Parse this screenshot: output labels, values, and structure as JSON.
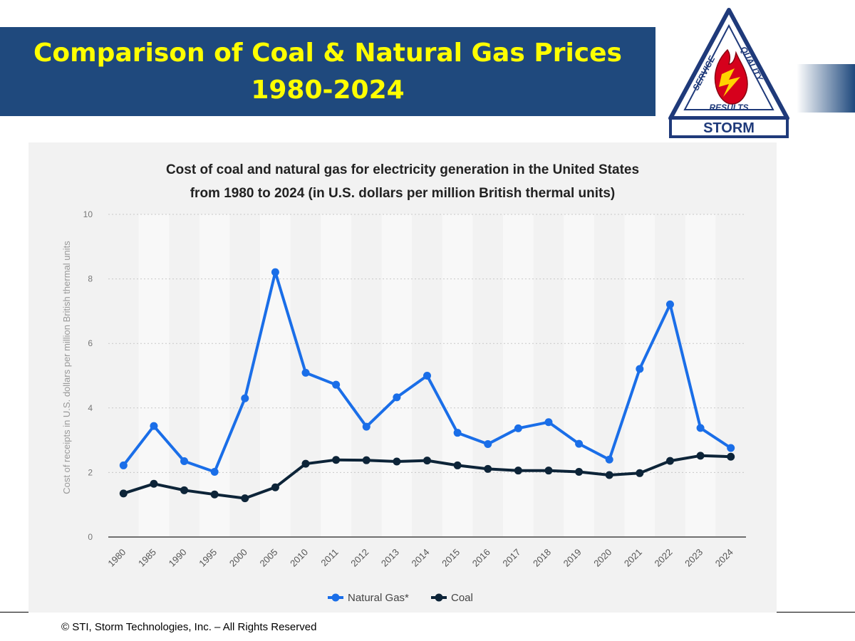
{
  "slide": {
    "title_line1": "Comparison of Coal & Natural Gas Prices",
    "title_line2": "1980-2024",
    "footer": "© STI, Storm Technologies, Inc. – All Rights Reserved",
    "logo": {
      "text_service": "SERVICE",
      "text_quality": "QUALITY",
      "text_results": "RESULTS",
      "text_storm": "STORM",
      "navy": "#1f3a7a",
      "red": "#d6001c"
    },
    "banner_color": "#1f497d",
    "title_color": "#ffff00"
  },
  "chart_data": {
    "type": "line",
    "title_line1": "Cost of coal and natural gas for electricity generation in the United States",
    "title_line2": "from 1980 to 2024 (in U.S. dollars per million British thermal units)",
    "ylabel": "Cost of receipts in U.S. dollars per million British thermal units",
    "xlabel": "",
    "categories": [
      "1980",
      "1985",
      "1990",
      "1995",
      "2000",
      "2005",
      "2010",
      "2011",
      "2012",
      "2013",
      "2014",
      "2015",
      "2016",
      "2017",
      "2018",
      "2019",
      "2020",
      "2021",
      "2022",
      "2023",
      "2024"
    ],
    "ylim": [
      0,
      10
    ],
    "yticks": [
      "0",
      "2",
      "4",
      "6",
      "8",
      "10"
    ],
    "grid": true,
    "legend_position": "bottom",
    "series": [
      {
        "name": "Natural Gas*",
        "color": "#1a6ee8",
        "values": [
          2.22,
          3.44,
          2.35,
          2.02,
          4.3,
          8.21,
          5.09,
          4.72,
          3.42,
          4.33,
          5.0,
          3.23,
          2.88,
          3.37,
          3.56,
          2.89,
          2.4,
          5.21,
          7.21,
          3.38,
          2.76
        ]
      },
      {
        "name": "Coal",
        "color": "#0d2438",
        "values": [
          1.35,
          1.65,
          1.45,
          1.32,
          1.2,
          1.54,
          2.27,
          2.39,
          2.38,
          2.34,
          2.37,
          2.22,
          2.11,
          2.06,
          2.06,
          2.02,
          1.92,
          1.98,
          2.36,
          2.52,
          2.49
        ]
      }
    ]
  }
}
